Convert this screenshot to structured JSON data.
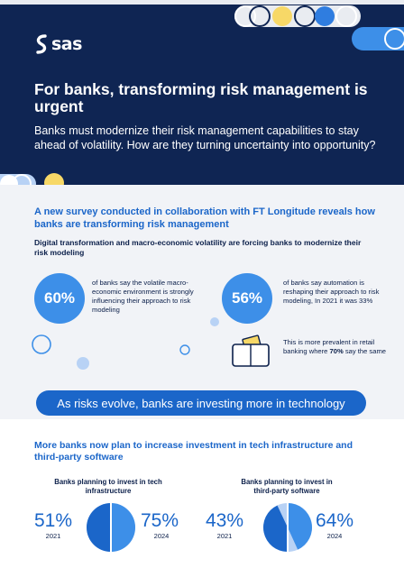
{
  "brand": {
    "logo_text": "sas"
  },
  "header": {
    "headline": "For banks, transforming risk management is urgent",
    "intro": "Banks must modernize their risk management capabilities to stay ahead of volatility. How are they turning uncertainty into opportunity?"
  },
  "survey": {
    "title": "A new survey conducted in collaboration with FT Longitude reveals how banks are transforming risk management",
    "subtitle": "Digital transformation and macro-economic volatility are forcing banks to modernize their risk modeling",
    "stats": [
      {
        "value": "60%",
        "text": "of banks say the volatile macro-economic environment is strongly influencing their approach to risk modeling"
      },
      {
        "value": "56%",
        "text": "of banks say automation is reshaping their approach to risk modeling, In 2021 it was 33%"
      }
    ],
    "note": {
      "text_before": "This is more prevalent in retail banking where ",
      "highlight": "70%",
      "text_after": " say the same"
    }
  },
  "tech_banner": "As risks evolve, banks are investing more in technology",
  "investment": {
    "title": "More banks now plan to increase investment in tech infrastructure and third-party software",
    "groups": [
      {
        "label": "Banks planning to invest in tech infrastructure",
        "before": {
          "value": "51%",
          "year": "2021",
          "fraction": 0.51
        },
        "after": {
          "value": "75%",
          "year": "2024",
          "fraction": 0.75
        }
      },
      {
        "label": "Banks planning to invest in third-party software",
        "before": {
          "value": "43%",
          "year": "2021",
          "fraction": 0.43
        },
        "after": {
          "value": "64%",
          "year": "2024",
          "fraction": 0.64
        }
      }
    ]
  },
  "colors": {
    "navy": "#0f2553",
    "blue": "#1b66c9",
    "light_blue": "#3d8fe8",
    "yellow": "#f7d867",
    "pale_blue": "#b8d2f5"
  }
}
